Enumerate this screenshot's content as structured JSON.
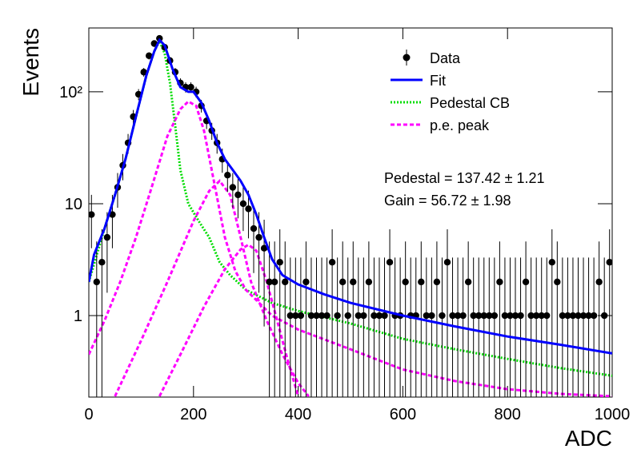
{
  "chart_data": {
    "type": "scatter",
    "xlabel": "ADC",
    "ylabel": "Events",
    "log_y": true,
    "xlim": [
      0,
      1000
    ],
    "ylim": [
      0.187,
      372
    ],
    "xticks": [
      0,
      200,
      400,
      600,
      800,
      1000
    ],
    "yticks": [
      1,
      10,
      {
        "value": 100,
        "label": "10²"
      }
    ],
    "legend": "upper right",
    "annotations": [
      "Pedestal = 137.42 ± 1.21",
      "Gain = 56.72 ± 1.98"
    ],
    "data": {
      "name": "Data",
      "color": "#000000",
      "x": [
        5,
        15,
        25,
        35,
        45,
        55,
        65,
        75,
        85,
        95,
        105,
        115,
        125,
        135,
        145,
        155,
        165,
        175,
        185,
        195,
        205,
        215,
        225,
        235,
        245,
        255,
        265,
        275,
        285,
        295,
        305,
        315,
        325,
        335,
        345,
        355,
        365,
        375,
        385,
        395,
        405,
        415,
        425,
        435,
        445,
        455,
        465,
        475,
        485,
        495,
        505,
        515,
        525,
        535,
        545,
        555,
        565,
        575,
        585,
        595,
        605,
        615,
        625,
        635,
        645,
        655,
        665,
        675,
        685,
        695,
        705,
        715,
        725,
        735,
        745,
        755,
        765,
        775,
        785,
        795,
        805,
        815,
        825,
        835,
        845,
        855,
        865,
        875,
        885,
        895,
        905,
        915,
        925,
        935,
        945,
        955,
        965,
        975,
        985,
        995
      ],
      "values": [
        8,
        2,
        3,
        5,
        8,
        14,
        22,
        35,
        60,
        95,
        150,
        210,
        270,
        300,
        250,
        190,
        150,
        120,
        110,
        110,
        100,
        75,
        55,
        45,
        35,
        25,
        18,
        14,
        12,
        10,
        9,
        6,
        5,
        4,
        2,
        2,
        3,
        2,
        1,
        1,
        1,
        2,
        1,
        1,
        1,
        1,
        3,
        1,
        2,
        1,
        2,
        1,
        1,
        2,
        1,
        1,
        1,
        3,
        1,
        1,
        2,
        1,
        1,
        2,
        1,
        1,
        2,
        1,
        3,
        1,
        1,
        1,
        2,
        1,
        1,
        1,
        1,
        1,
        2,
        1,
        1,
        1,
        1,
        2,
        1,
        1,
        1,
        1,
        3,
        2,
        1,
        1,
        1,
        1,
        1,
        1,
        1,
        2,
        1,
        3
      ],
      "errors": [
        4.0,
        2.6,
        2.9,
        3.4,
        4.0,
        4.8,
        5.8,
        7.0,
        8.8,
        10.8,
        13.3,
        15.5,
        17.4,
        18.3,
        16.8,
        14.8,
        13.3,
        12.0,
        11.5,
        11.5,
        11.0,
        9.7,
        8.5,
        7.8,
        7.0,
        6.1,
        5.3,
        4.8,
        4.6,
        4.3,
        4.1,
        3.6,
        3.4,
        3.2,
        2.6,
        2.6,
        2.9,
        2.6,
        2.3,
        2.3,
        2.3,
        2.6,
        2.3,
        2.3,
        2.3,
        2.3,
        2.9,
        2.3,
        2.6,
        2.3,
        2.6,
        2.3,
        2.3,
        2.6,
        2.3,
        2.3,
        2.3,
        2.9,
        2.3,
        2.3,
        2.6,
        2.3,
        2.3,
        2.6,
        2.3,
        2.3,
        2.6,
        2.3,
        2.9,
        2.3,
        2.3,
        2.3,
        2.6,
        2.3,
        2.3,
        2.3,
        2.3,
        2.3,
        2.6,
        2.3,
        2.3,
        2.3,
        2.3,
        2.6,
        2.3,
        2.3,
        2.3,
        2.3,
        2.9,
        2.6,
        2.3,
        2.3,
        2.3,
        2.3,
        2.3,
        2.3,
        2.3,
        2.6,
        2.3,
        2.9
      ]
    },
    "series": [
      {
        "name": "Fit",
        "color": "#0000ff",
        "style": "solid",
        "curves": [
          {
            "x": [
              0,
              10,
              30,
              50,
              70,
              90,
              110,
              125,
              135,
              145,
              160,
              175,
              190,
              200,
              215,
              230,
              245,
              260,
              275,
              290,
              305,
              320,
              335,
              350,
              370,
              400,
              450,
              500,
              600,
              700,
              800,
              900,
              1000
            ],
            "values": [
              2,
              3.5,
              6,
              12,
              25,
              60,
              140,
              230,
              290,
              260,
              160,
              110,
              100,
              100,
              80,
              55,
              35,
              25,
              20,
              16,
              12,
              8,
              5,
              3.2,
              2.3,
              1.9,
              1.55,
              1.3,
              1.0,
              0.8,
              0.65,
              0.55,
              0.46
            ]
          }
        ]
      },
      {
        "name": "Pedestal CB",
        "color": "#00dd00",
        "style": "dotted",
        "curves": [
          {
            "x": [
              0,
              30,
              50,
              70,
              90,
              110,
              125,
              135,
              145,
              155,
              165,
              175,
              190,
              210,
              230,
              250,
              270,
              300,
              350,
              400,
              500,
              600,
              700,
              800,
              900,
              1000
            ],
            "values": [
              2,
              6,
              12,
              25,
              60,
              140,
              230,
              285,
              220,
              120,
              50,
              20,
              10,
              7,
              5,
              3,
              2.3,
              1.7,
              1.3,
              1.1,
              0.85,
              0.62,
              0.5,
              0.41,
              0.34,
              0.29
            ]
          }
        ]
      },
      {
        "name": "p.e. peak",
        "color": "#ff00ff",
        "style": "dashed",
        "curves": [
          {
            "x": [
              0,
              30,
              60,
              90,
              120,
              150,
              175,
              190,
              205,
              220,
              240,
              260,
              280,
              300,
              350,
              400,
              500,
              600,
              700,
              800,
              900,
              1000
            ],
            "values": [
              0.45,
              0.9,
              2,
              5,
              14,
              40,
              70,
              82,
              75,
              45,
              15,
              5,
              2.5,
              1.7,
              1.0,
              0.75,
              0.5,
              0.33,
              0.26,
              0.22,
              0.2,
              0.19
            ]
          },
          {
            "x": [
              50,
              100,
              150,
              200,
              230,
              250,
              270,
              290,
              310,
              340,
              370,
              400,
              420
            ],
            "values": [
              0.19,
              0.6,
              2,
              7,
              13,
              16,
              12,
              5,
              2,
              0.9,
              0.45,
              0.25,
              0.19
            ]
          },
          {
            "x": [
              135,
              180,
              220,
              260,
              290,
              305,
              320,
              340,
              360,
              380,
              400
            ],
            "values": [
              0.19,
              0.5,
              1.2,
              2.6,
              3.9,
              4.3,
              3.8,
              2,
              0.9,
              0.4,
              0.19
            ]
          }
        ]
      }
    ]
  }
}
